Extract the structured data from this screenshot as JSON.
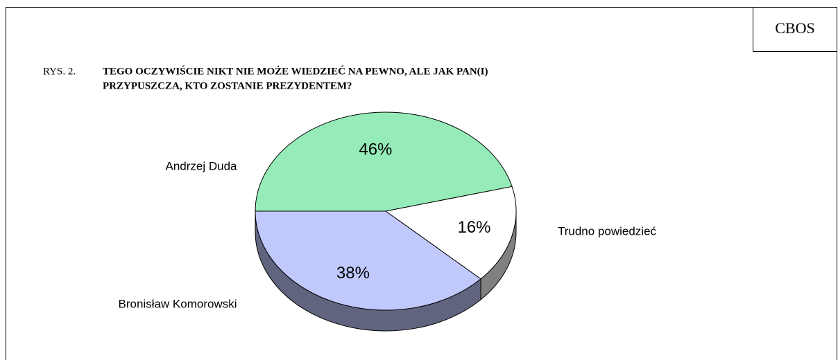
{
  "source": "CBOS",
  "chart_data": {
    "type": "pie",
    "figure_label": "RYS. 2.",
    "title": [
      "TEGO OCZYWIŚCIE NIKT NIE MOŻE WIEDZIEĆ NA PEWNO, ALE JAK PAN(I)",
      "PRZYPUSZCZA, KTO ZOSTANIE PREZYDENTEM?"
    ],
    "categories": [
      "Andrzej Duda",
      "Trudno powiedzieć",
      "Bronisław Komorowski"
    ],
    "values": [
      46,
      16,
      38
    ],
    "value_labels": [
      "46%",
      "16%",
      "38%"
    ],
    "colors": [
      "#96ecb8",
      "#ffffff",
      "#c0c8fc"
    ]
  }
}
